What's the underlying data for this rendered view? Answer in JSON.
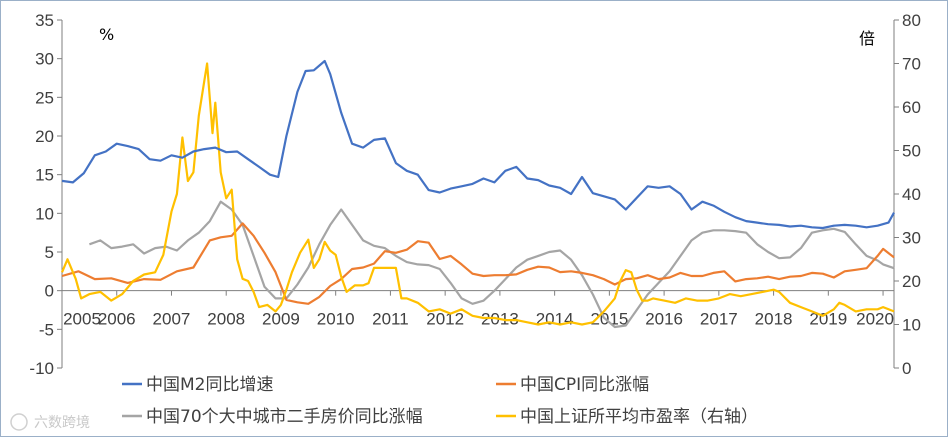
{
  "chart_data": {
    "type": "line",
    "left_unit": "%",
    "right_unit": "倍",
    "x_ticks": [
      "2005",
      "2006",
      "2007",
      "2008",
      "2009",
      "2010",
      "2011",
      "2012",
      "2013",
      "2014",
      "2015",
      "2016",
      "2017",
      "2018",
      "2019",
      "2020"
    ],
    "xlim": [
      2005.0,
      2020.2
    ],
    "ylim_left": [
      -10,
      35
    ],
    "yticks_left": [
      -10,
      -5,
      0,
      5,
      10,
      15,
      20,
      25,
      30,
      35
    ],
    "ylim_right": [
      0,
      80
    ],
    "yticks_right": [
      0,
      10,
      20,
      30,
      40,
      50,
      60,
      70,
      80
    ],
    "watermark": "六数跨境",
    "series": [
      {
        "name": "中国M2同比增速",
        "axis": "left",
        "color": "#4472c4",
        "x": [
          2005.0,
          2005.2,
          2005.4,
          2005.6,
          2005.8,
          2006.0,
          2006.2,
          2006.4,
          2006.6,
          2006.8,
          2007.0,
          2007.2,
          2007.4,
          2007.6,
          2007.8,
          2008.0,
          2008.2,
          2008.4,
          2008.6,
          2008.8,
          2008.95,
          2009.1,
          2009.3,
          2009.45,
          2009.6,
          2009.8,
          2009.9,
          2010.1,
          2010.3,
          2010.5,
          2010.7,
          2010.9,
          2011.1,
          2011.3,
          2011.5,
          2011.7,
          2011.9,
          2012.1,
          2012.3,
          2012.5,
          2012.7,
          2012.9,
          2013.1,
          2013.3,
          2013.5,
          2013.7,
          2013.9,
          2014.1,
          2014.3,
          2014.5,
          2014.7,
          2014.9,
          2015.1,
          2015.3,
          2015.5,
          2015.7,
          2015.9,
          2016.1,
          2016.3,
          2016.5,
          2016.7,
          2016.9,
          2017.1,
          2017.3,
          2017.5,
          2017.7,
          2017.9,
          2018.1,
          2018.3,
          2018.5,
          2018.7,
          2018.9,
          2019.1,
          2019.3,
          2019.5,
          2019.7,
          2019.9,
          2020.1,
          2020.2
        ],
        "values": [
          14.2,
          14.0,
          15.2,
          17.5,
          18.0,
          19.0,
          18.7,
          18.3,
          17.0,
          16.8,
          17.5,
          17.2,
          18.0,
          18.3,
          18.5,
          17.9,
          18.0,
          17.0,
          16.0,
          15.0,
          14.7,
          20.0,
          25.7,
          28.4,
          28.5,
          29.7,
          28.0,
          23.0,
          19.0,
          18.5,
          19.5,
          19.7,
          16.5,
          15.5,
          15.0,
          13.0,
          12.7,
          13.2,
          13.5,
          13.8,
          14.5,
          14.0,
          15.5,
          16.0,
          14.5,
          14.3,
          13.6,
          13.3,
          12.5,
          14.7,
          12.6,
          12.2,
          11.8,
          10.5,
          12.0,
          13.5,
          13.3,
          13.5,
          12.5,
          10.5,
          11.5,
          11.0,
          10.2,
          9.5,
          9.0,
          8.8,
          8.6,
          8.5,
          8.3,
          8.4,
          8.2,
          8.1,
          8.4,
          8.5,
          8.4,
          8.2,
          8.4,
          8.8,
          10.1
        ]
      },
      {
        "name": "中国CPI同比涨幅",
        "axis": "left",
        "color": "#ed7d31",
        "x": [
          2005.0,
          2005.3,
          2005.6,
          2005.9,
          2006.2,
          2006.5,
          2006.8,
          2007.1,
          2007.4,
          2007.7,
          2007.9,
          2008.1,
          2008.3,
          2008.5,
          2008.7,
          2008.9,
          2009.1,
          2009.3,
          2009.5,
          2009.7,
          2009.9,
          2010.1,
          2010.3,
          2010.5,
          2010.7,
          2010.9,
          2011.1,
          2011.3,
          2011.5,
          2011.7,
          2011.9,
          2012.1,
          2012.3,
          2012.5,
          2012.7,
          2012.9,
          2013.1,
          2013.3,
          2013.5,
          2013.7,
          2013.9,
          2014.1,
          2014.3,
          2014.5,
          2014.7,
          2014.9,
          2015.1,
          2015.3,
          2015.5,
          2015.7,
          2015.9,
          2016.1,
          2016.3,
          2016.5,
          2016.7,
          2016.9,
          2017.1,
          2017.3,
          2017.5,
          2017.7,
          2017.9,
          2018.1,
          2018.3,
          2018.5,
          2018.7,
          2018.9,
          2019.1,
          2019.3,
          2019.5,
          2019.7,
          2019.9,
          2020.0,
          2020.2
        ],
        "values": [
          1.9,
          2.5,
          1.5,
          1.6,
          1.0,
          1.5,
          1.4,
          2.5,
          3.0,
          6.5,
          6.9,
          7.1,
          8.7,
          7.1,
          4.9,
          2.4,
          -1.2,
          -1.5,
          -1.7,
          -0.8,
          0.6,
          1.5,
          2.8,
          3.0,
          3.5,
          5.1,
          4.9,
          5.3,
          6.4,
          6.2,
          4.1,
          4.5,
          3.4,
          2.2,
          1.9,
          2.0,
          2.0,
          2.1,
          2.7,
          3.1,
          3.0,
          2.4,
          2.5,
          2.3,
          2.0,
          1.5,
          0.8,
          1.5,
          1.6,
          2.0,
          1.5,
          1.7,
          2.3,
          1.9,
          1.9,
          2.3,
          2.5,
          1.2,
          1.5,
          1.6,
          1.8,
          1.5,
          1.8,
          1.9,
          2.3,
          2.2,
          1.7,
          2.5,
          2.7,
          2.9,
          4.5,
          5.4,
          4.3
        ]
      },
      {
        "name": "中国70个大中城市二手房价同比涨幅",
        "axis": "left",
        "color": "#a5a5a5",
        "x": [
          2005.5,
          2005.7,
          2005.9,
          2006.1,
          2006.3,
          2006.5,
          2006.7,
          2006.9,
          2007.1,
          2007.3,
          2007.5,
          2007.7,
          2007.9,
          2008.1,
          2008.3,
          2008.5,
          2008.7,
          2008.9,
          2009.1,
          2009.3,
          2009.5,
          2009.7,
          2009.9,
          2010.1,
          2010.3,
          2010.5,
          2010.7,
          2010.9,
          2011.1,
          2011.3,
          2011.5,
          2011.7,
          2011.9,
          2012.1,
          2012.3,
          2012.5,
          2012.7,
          2012.9,
          2013.1,
          2013.3,
          2013.5,
          2013.7,
          2013.9,
          2014.1,
          2014.3,
          2014.5,
          2014.7,
          2014.9,
          2015.1,
          2015.3,
          2015.5,
          2015.7,
          2015.9,
          2016.1,
          2016.3,
          2016.5,
          2016.7,
          2016.9,
          2017.1,
          2017.3,
          2017.5,
          2017.7,
          2017.9,
          2018.1,
          2018.3,
          2018.5,
          2018.7,
          2018.9,
          2019.1,
          2019.3,
          2019.5,
          2019.7,
          2019.9,
          2020.0,
          2020.2
        ],
        "values": [
          6.0,
          6.5,
          5.5,
          5.7,
          6.0,
          4.8,
          5.5,
          5.7,
          5.2,
          6.5,
          7.5,
          9.0,
          11.5,
          10.5,
          8.5,
          4.5,
          0.5,
          -1.0,
          -1.0,
          0.8,
          3.0,
          6.0,
          8.5,
          10.5,
          8.5,
          6.5,
          5.8,
          5.5,
          4.5,
          3.7,
          3.4,
          3.3,
          2.8,
          1.0,
          -1.0,
          -1.7,
          -1.3,
          0.0,
          1.5,
          3.0,
          4.0,
          4.5,
          5.0,
          5.2,
          4.0,
          2.0,
          -0.5,
          -3.5,
          -4.7,
          -4.5,
          -2.5,
          -0.5,
          1.0,
          2.5,
          4.5,
          6.5,
          7.5,
          7.8,
          7.8,
          7.7,
          7.5,
          6.0,
          5.0,
          4.2,
          4.3,
          5.5,
          7.5,
          7.8,
          8.0,
          7.6,
          6.0,
          4.5,
          3.9,
          3.4,
          2.9
        ]
      },
      {
        "name": "中国上证所平均市盈率（右轴）",
        "axis": "right",
        "color": "#ffc000",
        "x": [
          2005.0,
          2005.1,
          2005.25,
          2005.35,
          2005.5,
          2005.7,
          2005.9,
          2006.1,
          2006.3,
          2006.5,
          2006.7,
          2006.85,
          2007.0,
          2007.1,
          2007.2,
          2007.3,
          2007.4,
          2007.5,
          2007.6,
          2007.65,
          2007.75,
          2007.8,
          2007.9,
          2008.0,
          2008.1,
          2008.2,
          2008.3,
          2008.4,
          2008.5,
          2008.6,
          2008.75,
          2008.9,
          2009.0,
          2009.1,
          2009.2,
          2009.35,
          2009.5,
          2009.6,
          2009.7,
          2009.8,
          2009.9,
          2010.0,
          2010.1,
          2010.2,
          2010.35,
          2010.5,
          2010.6,
          2010.7,
          2010.9,
          2011.1,
          2011.2,
          2011.3,
          2011.5,
          2011.7,
          2011.9,
          2012.1,
          2012.3,
          2012.5,
          2012.7,
          2012.9,
          2013.1,
          2013.3,
          2013.5,
          2013.7,
          2013.9,
          2014.1,
          2014.3,
          2014.5,
          2014.7,
          2014.9,
          2015.1,
          2015.2,
          2015.3,
          2015.4,
          2015.5,
          2015.6,
          2015.7,
          2015.8,
          2016.0,
          2016.2,
          2016.4,
          2016.6,
          2016.8,
          2017.0,
          2017.2,
          2017.4,
          2017.6,
          2017.8,
          2018.0,
          2018.1,
          2018.3,
          2018.5,
          2018.7,
          2018.9,
          2019.1,
          2019.2,
          2019.3,
          2019.5,
          2019.7,
          2019.9,
          2020.0,
          2020.2
        ],
        "values": [
          22.0,
          25.0,
          20.5,
          16.0,
          17.0,
          17.5,
          15.5,
          17.0,
          20.0,
          21.5,
          22.0,
          26.0,
          36.0,
          40.0,
          53.0,
          43.0,
          45.0,
          58.0,
          66.0,
          70.0,
          54.0,
          61.0,
          45.0,
          39.0,
          41.0,
          25.0,
          20.5,
          20.0,
          17.5,
          14.0,
          14.5,
          13.0,
          14.5,
          18.0,
          22.0,
          26.5,
          29.5,
          23.0,
          25.0,
          29.0,
          27.0,
          26.0,
          21.0,
          17.5,
          19.0,
          19.0,
          19.5,
          23.0,
          23.0,
          23.0,
          16.0,
          16.0,
          15.0,
          13.0,
          13.5,
          12.5,
          13.5,
          12.0,
          11.5,
          11.5,
          11.0,
          11.0,
          10.5,
          10.0,
          10.5,
          10.0,
          10.5,
          10.0,
          10.5,
          13.0,
          16.0,
          20.0,
          22.5,
          22.0,
          18.0,
          15.5,
          15.5,
          16.0,
          15.5,
          15.0,
          16.0,
          15.5,
          15.5,
          16.0,
          17.0,
          16.5,
          17.0,
          17.5,
          18.0,
          17.5,
          15.0,
          14.0,
          13.0,
          12.0,
          13.5,
          15.0,
          14.5,
          13.0,
          13.5,
          13.5,
          14.0,
          13.0
        ]
      }
    ]
  }
}
